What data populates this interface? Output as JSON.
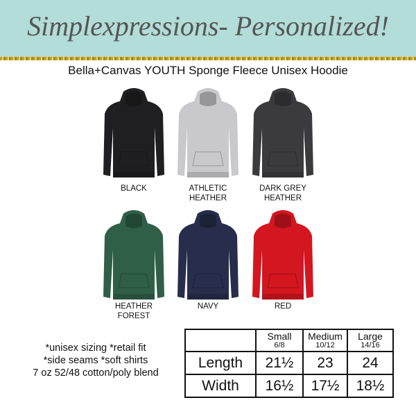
{
  "banner": {
    "title": "Simplexpressions- Personalized!"
  },
  "subtitle": "Bella+Canvas YOUTH Sponge Fleece Unisex Hoodie",
  "colors": [
    {
      "name": "BLACK",
      "line2": "",
      "hex": "#1f1f21"
    },
    {
      "name": "ATHLETIC",
      "line2": "HEATHER",
      "hex": "#c9c9cc"
    },
    {
      "name": "DARK GREY",
      "line2": "HEATHER",
      "hex": "#3b3b3e"
    },
    {
      "name": "HEATHER",
      "line2": "FOREST",
      "hex": "#2f5f47"
    },
    {
      "name": "NAVY",
      "line2": "",
      "hex": "#272d4b"
    },
    {
      "name": "RED",
      "line2": "",
      "hex": "#d3161f"
    }
  ],
  "features": [
    "*unisex sizing *retail fit",
    "*side seams  *soft shirts",
    "7 oz 52/48 cotton/poly blend"
  ],
  "size_table": {
    "headers": [
      {
        "size": "Small",
        "range": "6/8"
      },
      {
        "size": "Medium",
        "range": "10/12"
      },
      {
        "size": "Large",
        "range": "14/16"
      }
    ],
    "rows": [
      {
        "label": "Length",
        "values": [
          "21½",
          "23",
          "24"
        ]
      },
      {
        "label": "Width",
        "values": [
          "16½",
          "17½",
          "18½"
        ]
      }
    ]
  }
}
